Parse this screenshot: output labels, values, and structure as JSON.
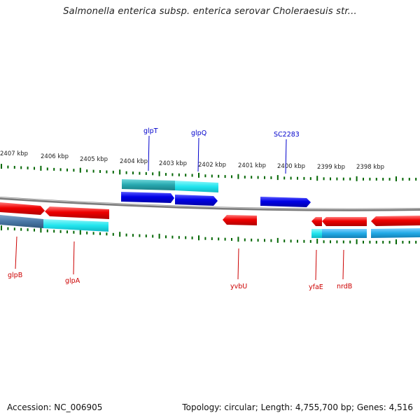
{
  "title": "Salmonella enterica subsp. enterica serovar Choleraesuis str...",
  "footer": {
    "accession": "Accession: NC_006905",
    "summary": "Topology: circular; Length: 4,755,700 bp; Genes: 4,516"
  },
  "colors": {
    "forward_gene": "#0000e6",
    "reverse_gene": "#ee0000",
    "forward_label": "#0000cc",
    "reverse_label": "#cc0000",
    "cds_cyan": "#22e5ee",
    "ticks": "#006600",
    "backbone": "#7a7a7a"
  },
  "ruler": {
    "labels": [
      "2407 kbp",
      "2406 kbp",
      "2405 kbp",
      "2404 kbp",
      "2403 kbp",
      "2402 kbp",
      "2401 kbp",
      "2400 kbp",
      "2399 kbp",
      "2398 kbp"
    ]
  },
  "genes": [
    {
      "name": "glpT",
      "strand": "forward"
    },
    {
      "name": "glpQ",
      "strand": "forward"
    },
    {
      "name": "SC2283",
      "strand": "forward"
    },
    {
      "name": "glpB",
      "strand": "reverse"
    },
    {
      "name": "glpA",
      "strand": "reverse"
    },
    {
      "name": "yvbU",
      "strand": "reverse"
    },
    {
      "name": "yfaE",
      "strand": "reverse"
    },
    {
      "name": "nrdB",
      "strand": "reverse"
    }
  ]
}
